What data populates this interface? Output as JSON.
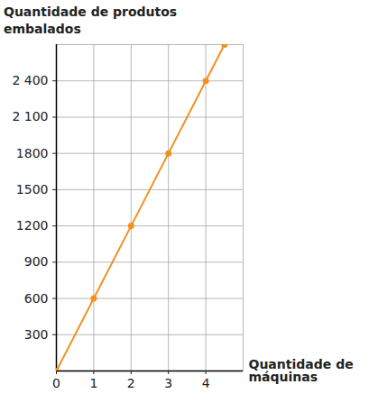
{
  "chart_data": {
    "type": "line",
    "x_label": "Quantidade de máquinas",
    "y_label": "Quantidade de produtos embalados",
    "x": [
      0,
      1,
      2,
      3,
      4,
      4.5
    ],
    "values": [
      0,
      600,
      1200,
      1800,
      2400,
      2700
    ],
    "color": "#f39020",
    "marker": "circle",
    "xlim": [
      0,
      5
    ],
    "ylim": [
      0,
      2700
    ],
    "xticks": [
      0,
      1,
      2,
      3,
      4
    ],
    "yticks": [
      300,
      600,
      900,
      1200,
      1500,
      1800,
      {
        "value": 2100,
        "label": "2 100"
      },
      {
        "value": 2400,
        "label": "2 400"
      }
    ],
    "grid": true
  }
}
